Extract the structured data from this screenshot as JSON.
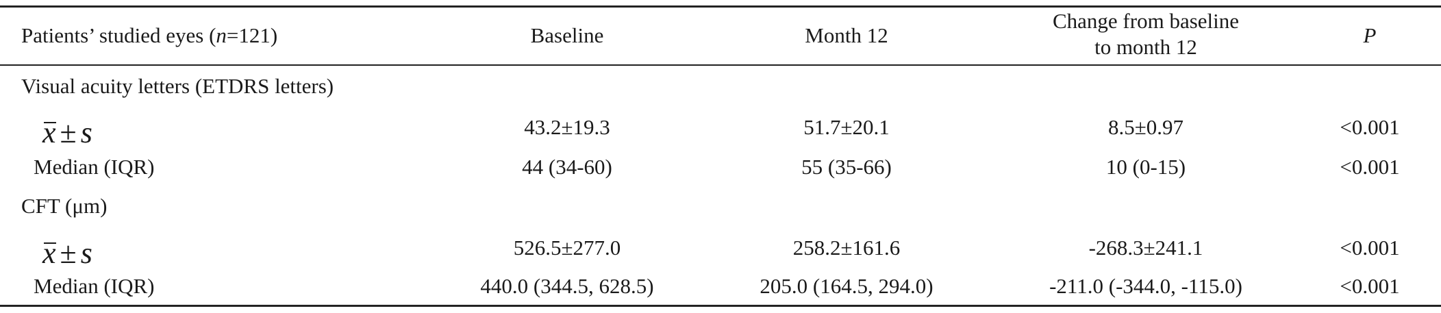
{
  "table": {
    "headers": {
      "col1_prefix": "Patients’ studied eyes (",
      "col1_n": "n",
      "col1_suffix": "=121)",
      "col2": "Baseline",
      "col3": "Month 12",
      "col4_line1": "Change from baseline",
      "col4_line2": "to month 12",
      "col5": "P"
    },
    "section_va": {
      "title": "Visual acuity letters (ETDRS letters)",
      "mean_row": {
        "label_x": "x",
        "label_pm": "±",
        "label_s": "s",
        "baseline": "43.2±19.3",
        "month12": "51.7±20.1",
        "change": "8.5±0.97",
        "p": "<0.001"
      },
      "median_row": {
        "label": "Median (IQR)",
        "baseline": "44 (34-60)",
        "month12": "55 (35-66)",
        "change": "10 (0-15)",
        "p": "<0.001"
      }
    },
    "section_cft": {
      "title": "CFT (μm)",
      "mean_row": {
        "label_x": "x",
        "label_pm": "±",
        "label_s": "s",
        "baseline": "526.5±277.0",
        "month12": "258.2±161.6",
        "change": "-268.3±241.1",
        "p": "<0.001"
      },
      "median_row": {
        "label": "Median (IQR)",
        "baseline": "440.0 (344.5, 628.5)",
        "month12": "205.0 (164.5, 294.0)",
        "change": "-211.0 (-344.0, -115.0)",
        "p": "<0.001"
      }
    }
  }
}
